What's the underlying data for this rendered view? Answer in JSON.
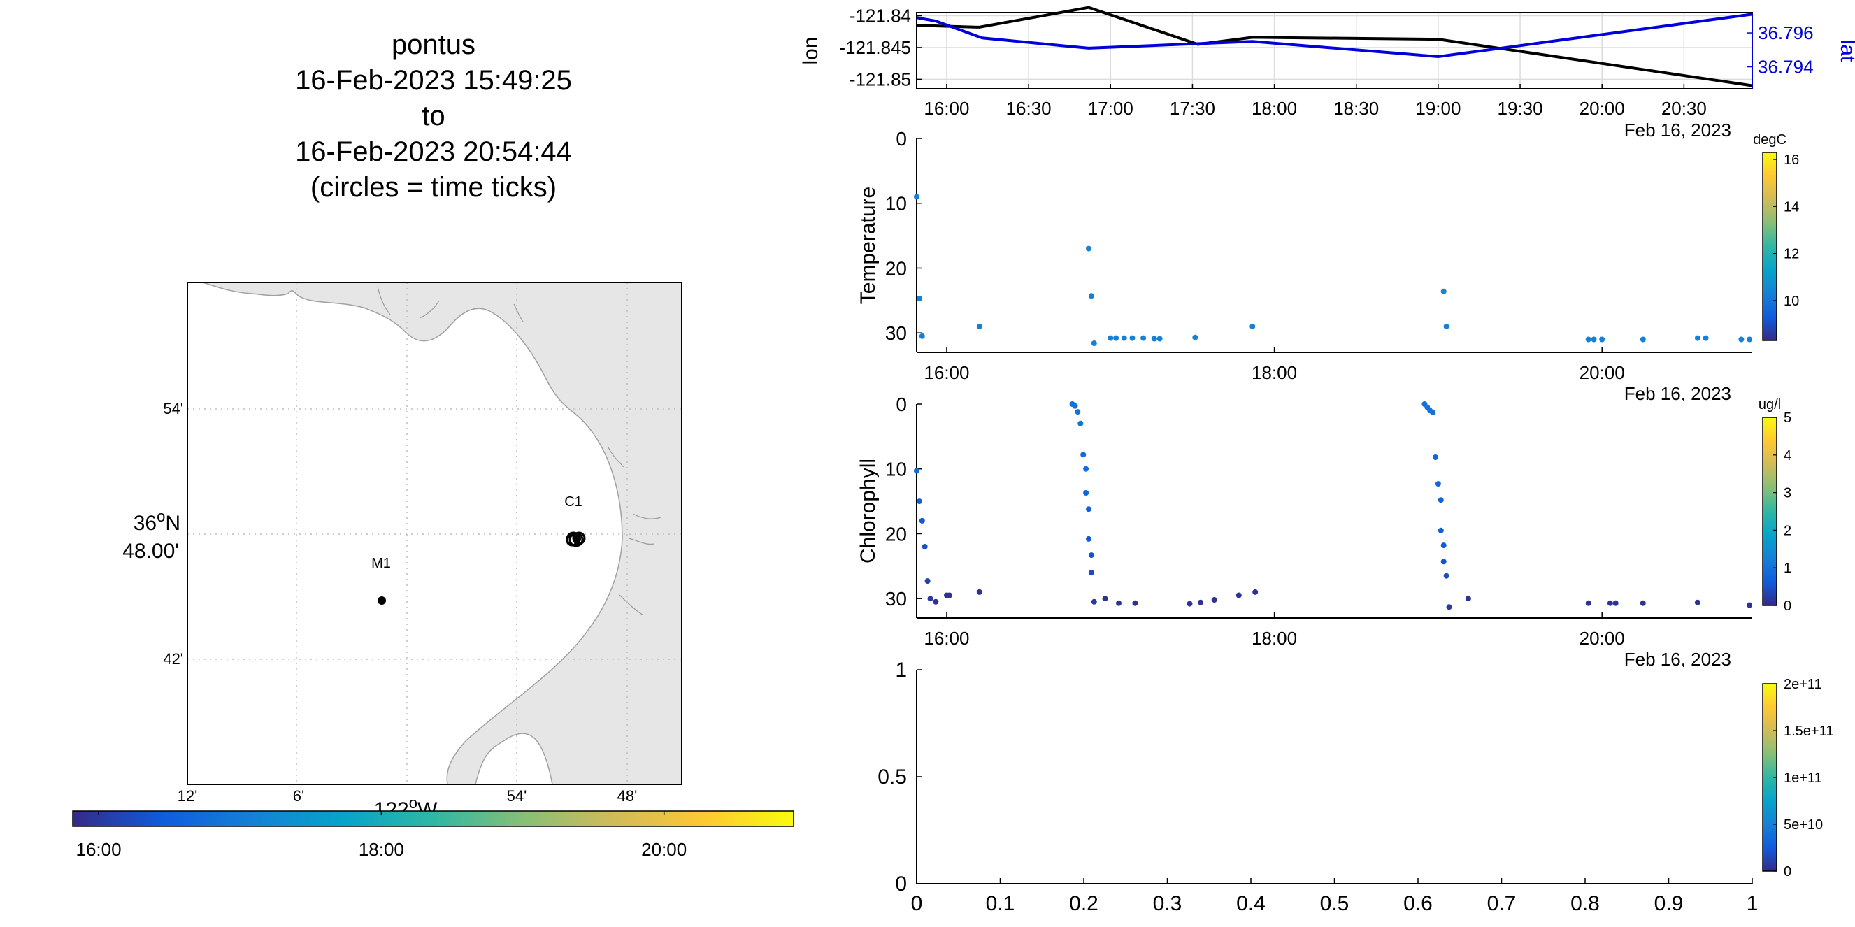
{
  "title": {
    "lines": [
      "pontus",
      "16-Feb-2023 15:49:25",
      "to",
      "16-Feb-2023 20:54:44",
      "(circles = time ticks)"
    ]
  },
  "colors": {
    "lon": "#000000",
    "lat": "#0000dd",
    "land": "#e6e6e6",
    "grid": "#c8c8c8",
    "parula": [
      "#352a87",
      "#0f5cdd",
      "#1481d6",
      "#06a4ca",
      "#2eb7a4",
      "#87bf77",
      "#d1bb59",
      "#fec832",
      "#f9fb0e"
    ]
  },
  "map": {
    "lat_ticks": [
      "54'",
      "42'"
    ],
    "lat_center": {
      "deg": "36",
      "sup": "o",
      "hemi": "N",
      "min": "48.00'"
    },
    "lon_ticks": [
      "12'",
      "6'",
      "54'",
      "48'"
    ],
    "lon_center": {
      "deg": "122",
      "sup": "o",
      "hemi": "W"
    },
    "markers": [
      {
        "label": "M1",
        "lon": -122.03,
        "lat": 36.747
      },
      {
        "label": "C1",
        "lon": -121.886,
        "lat": 36.797
      }
    ]
  },
  "time_colorbar": {
    "ticks": [
      "16:00",
      "18:00",
      "20:00"
    ]
  },
  "chart_data": [
    {
      "type": "line",
      "title": "",
      "xlabel": "Feb 16, 2023",
      "ylabel": "lon",
      "ylabel_right": "lat",
      "x_ticks": [
        "16:00",
        "16:30",
        "17:00",
        "17:30",
        "18:00",
        "18:30",
        "19:00",
        "19:30",
        "20:00",
        "20:30"
      ],
      "xlim": [
        "15:49",
        "20:55"
      ],
      "y_ticks": [
        "-121.84",
        "-121.845",
        "-121.85"
      ],
      "ylim": [
        -121.8515,
        -121.8395
      ],
      "y2_ticks": [
        "36.796",
        "36.794"
      ],
      "y2lim": [
        36.7927,
        36.7972
      ],
      "grid": true,
      "series": [
        {
          "name": "lon",
          "axis": "left",
          "x": [
            "15:49",
            "16:12",
            "16:52",
            "17:32",
            "17:52",
            "19:00",
            "20:55"
          ],
          "values": [
            -121.8415,
            -121.8418,
            -121.8387,
            -121.8445,
            -121.8434,
            -121.8437,
            -121.851
          ]
        },
        {
          "name": "lat",
          "axis": "right",
          "x": [
            "15:49",
            "15:56",
            "16:13",
            "16:52",
            "17:52",
            "19:00",
            "20:55"
          ],
          "values": [
            36.7969,
            36.7967,
            36.7957,
            36.7951,
            36.7955,
            36.7946,
            36.7971
          ]
        }
      ]
    },
    {
      "type": "scatter",
      "title": "",
      "xlabel": "Feb 16, 2023",
      "ylabel": "Temperature",
      "x_ticks": [
        "16:00",
        "18:00",
        "20:00"
      ],
      "xlim": [
        "15:49",
        "20:55"
      ],
      "y_ticks": [
        "0",
        "10",
        "20",
        "30"
      ],
      "ylim": [
        0,
        33
      ],
      "y_reversed": true,
      "colorbar": {
        "unit": "degC",
        "ticks": [
          "10",
          "12",
          "14",
          "16"
        ],
        "range": [
          8.3,
          16.3
        ]
      },
      "points": [
        {
          "t": "15:49",
          "y": 9,
          "c": 10.3
        },
        {
          "t": "15:50",
          "y": 24.7,
          "c": 10.3
        },
        {
          "t": "15:51",
          "y": 30.5,
          "c": 10.3
        },
        {
          "t": "16:12",
          "y": 29,
          "c": 10.3
        },
        {
          "t": "16:52",
          "y": 17,
          "c": 10.4
        },
        {
          "t": "16:53",
          "y": 24.3,
          "c": 10.3
        },
        {
          "t": "16:54",
          "y": 31.6,
          "c": 10.3
        },
        {
          "t": "17:00",
          "y": 30.8,
          "c": 10.3
        },
        {
          "t": "17:02",
          "y": 30.8,
          "c": 10.3
        },
        {
          "t": "17:05",
          "y": 30.8,
          "c": 10.3
        },
        {
          "t": "17:08",
          "y": 30.8,
          "c": 10.3
        },
        {
          "t": "17:12",
          "y": 30.8,
          "c": 10.3
        },
        {
          "t": "17:16",
          "y": 30.9,
          "c": 10.3
        },
        {
          "t": "17:18",
          "y": 30.9,
          "c": 10.3
        },
        {
          "t": "17:31",
          "y": 30.7,
          "c": 10.3
        },
        {
          "t": "17:52",
          "y": 29,
          "c": 10.3
        },
        {
          "t": "19:02",
          "y": 23.6,
          "c": 10.4
        },
        {
          "t": "19:03",
          "y": 29,
          "c": 10.3
        },
        {
          "t": "19:55",
          "y": 31,
          "c": 10.3
        },
        {
          "t": "19:57",
          "y": 31,
          "c": 10.3
        },
        {
          "t": "20:00",
          "y": 31,
          "c": 10.3
        },
        {
          "t": "20:15",
          "y": 31,
          "c": 10.3
        },
        {
          "t": "20:35",
          "y": 30.8,
          "c": 10.3
        },
        {
          "t": "20:38",
          "y": 30.8,
          "c": 10.3
        },
        {
          "t": "20:51",
          "y": 31,
          "c": 10.3
        },
        {
          "t": "20:54",
          "y": 31,
          "c": 10.3
        }
      ]
    },
    {
      "type": "scatter",
      "title": "",
      "xlabel": "Feb 16, 2023",
      "ylabel": "Chlorophyll",
      "x_ticks": [
        "16:00",
        "18:00",
        "20:00"
      ],
      "xlim": [
        "15:49",
        "20:55"
      ],
      "y_ticks": [
        "0",
        "10",
        "20",
        "30"
      ],
      "ylim": [
        0,
        33
      ],
      "y_reversed": true,
      "colorbar": {
        "unit": "ug/l",
        "ticks": [
          "0",
          "1",
          "2",
          "3",
          "4",
          "5"
        ],
        "range": [
          0,
          5
        ]
      },
      "points": [
        {
          "t": "15:49",
          "y": 10.3,
          "c": 0.9
        },
        {
          "t": "15:50",
          "y": 15,
          "c": 0.7
        },
        {
          "t": "15:51",
          "y": 18,
          "c": 0.6
        },
        {
          "t": "15:52",
          "y": 22,
          "c": 0.5
        },
        {
          "t": "15:53",
          "y": 27.3,
          "c": 0.3
        },
        {
          "t": "15:54",
          "y": 30,
          "c": 0.2
        },
        {
          "t": "15:56",
          "y": 30.5,
          "c": 0.1
        },
        {
          "t": "16:00",
          "y": 29.5,
          "c": 0.1
        },
        {
          "t": "16:01",
          "y": 29.5,
          "c": 0.1
        },
        {
          "t": "16:12",
          "y": 29,
          "c": 0.1
        },
        {
          "t": "16:46",
          "y": 0,
          "c": 1.0
        },
        {
          "t": "16:47",
          "y": 0.3,
          "c": 1.0
        },
        {
          "t": "16:48",
          "y": 1.2,
          "c": 1.0
        },
        {
          "t": "16:49",
          "y": 3.0,
          "c": 1.0
        },
        {
          "t": "16:50",
          "y": 7.8,
          "c": 0.9
        },
        {
          "t": "16:51",
          "y": 10,
          "c": 0.9
        },
        {
          "t": "16:51",
          "y": 13.7,
          "c": 0.8
        },
        {
          "t": "16:52",
          "y": 16.2,
          "c": 0.7
        },
        {
          "t": "16:52",
          "y": 20.8,
          "c": 0.6
        },
        {
          "t": "16:53",
          "y": 23.3,
          "c": 0.5
        },
        {
          "t": "16:53",
          "y": 26,
          "c": 0.4
        },
        {
          "t": "16:54",
          "y": 30.5,
          "c": 0.2
        },
        {
          "t": "16:58",
          "y": 30,
          "c": 0.1
        },
        {
          "t": "17:03",
          "y": 30.7,
          "c": 0.1
        },
        {
          "t": "17:09",
          "y": 30.7,
          "c": 0.1
        },
        {
          "t": "17:29",
          "y": 30.8,
          "c": 0.1
        },
        {
          "t": "17:33",
          "y": 30.6,
          "c": 0.1
        },
        {
          "t": "17:38",
          "y": 30.2,
          "c": 0.1
        },
        {
          "t": "17:47",
          "y": 29.5,
          "c": 0.1
        },
        {
          "t": "17:53",
          "y": 29,
          "c": 0.1
        },
        {
          "t": "18:55",
          "y": 0,
          "c": 1.0
        },
        {
          "t": "18:56",
          "y": 0.5,
          "c": 1.0
        },
        {
          "t": "18:57",
          "y": 1.0,
          "c": 1.0
        },
        {
          "t": "18:58",
          "y": 1.3,
          "c": 1.0
        },
        {
          "t": "18:59",
          "y": 8.2,
          "c": 0.8
        },
        {
          "t": "19:00",
          "y": 12.3,
          "c": 0.8
        },
        {
          "t": "19:01",
          "y": 14.8,
          "c": 0.8
        },
        {
          "t": "19:01",
          "y": 19.5,
          "c": 0.7
        },
        {
          "t": "19:02",
          "y": 21.8,
          "c": 0.6
        },
        {
          "t": "19:02",
          "y": 24.3,
          "c": 0.5
        },
        {
          "t": "19:03",
          "y": 26.5,
          "c": 0.4
        },
        {
          "t": "19:04",
          "y": 31.3,
          "c": 0.2
        },
        {
          "t": "19:11",
          "y": 30,
          "c": 0.1
        },
        {
          "t": "19:55",
          "y": 30.7,
          "c": 0.1
        },
        {
          "t": "20:03",
          "y": 30.7,
          "c": 0.1
        },
        {
          "t": "20:05",
          "y": 30.7,
          "c": 0.1
        },
        {
          "t": "20:15",
          "y": 30.7,
          "c": 0.1
        },
        {
          "t": "20:35",
          "y": 30.6,
          "c": 0.1
        },
        {
          "t": "20:54",
          "y": 31,
          "c": 0.1
        }
      ]
    },
    {
      "type": "scatter",
      "title": "",
      "xlabel": "",
      "ylabel": "",
      "x_ticks": [
        "0",
        "0.1",
        "0.2",
        "0.3",
        "0.4",
        "0.5",
        "0.6",
        "0.7",
        "0.8",
        "0.9",
        "1"
      ],
      "xlim": [
        0,
        1
      ],
      "y_ticks": [
        "1",
        "0.5",
        "0"
      ],
      "ylim": [
        0,
        1
      ],
      "colorbar": {
        "unit": "",
        "ticks": [
          "0",
          "5e+10",
          "1e+11",
          "1.5e+11",
          "2e+11"
        ],
        "range": [
          0,
          200000000000
        ]
      },
      "points": []
    }
  ]
}
